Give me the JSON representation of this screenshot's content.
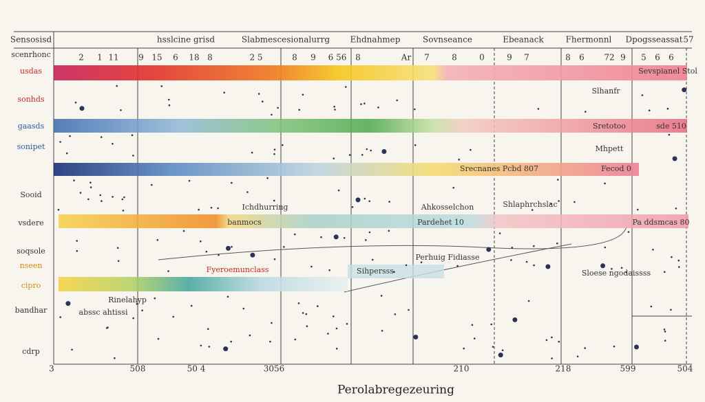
{
  "title": "Perolabregezeuring",
  "column_headers": [
    "Sensosisd",
    "hsslcine grisd",
    "Slabmescesionalurrg",
    "Ehdnahmep",
    "Sovnseance",
    "Ebeanack",
    "Fhermonnl",
    "Dpogsseassat",
    "57"
  ],
  "top_numbers": [
    "2",
    "1",
    "11",
    "9",
    "15",
    "6",
    "18",
    "8",
    "2 5",
    "8",
    "9",
    "6 56",
    "8",
    "Ar",
    "7",
    "8",
    "0",
    "9",
    "7",
    "8",
    "6",
    "72",
    "9",
    "5",
    "6",
    "6"
  ],
  "row_labels": [
    "scenrhonc",
    "usdas",
    "sonhds",
    "gaasds",
    "sonipet",
    "Sooid",
    "vsdere",
    "soqsole",
    "nseen",
    "cipro",
    "bandhar",
    "cdrp"
  ],
  "band_labels": [
    "Sevspianel Stol",
    "Slhanfr",
    "Sretotoo",
    "sde 510",
    "Mhpett",
    "Srecnanes Pcbd 807",
    "Fecod 0",
    "Ichdhurring",
    "Ahkosselchon",
    "Shlaphrchslac",
    "banmocs",
    "Pardehet 10",
    "Pa ddsmcas 80",
    "Fyeroemunclass",
    "Sihpersss",
    "Perhuig Fidiasse",
    "Sloese ngodaissss",
    "Rinelahyp",
    "abssc ahtissi"
  ],
  "bottom_labels": [
    "3",
    "508",
    "50 4",
    "3056",
    "210",
    "218",
    "599",
    "504"
  ]
}
